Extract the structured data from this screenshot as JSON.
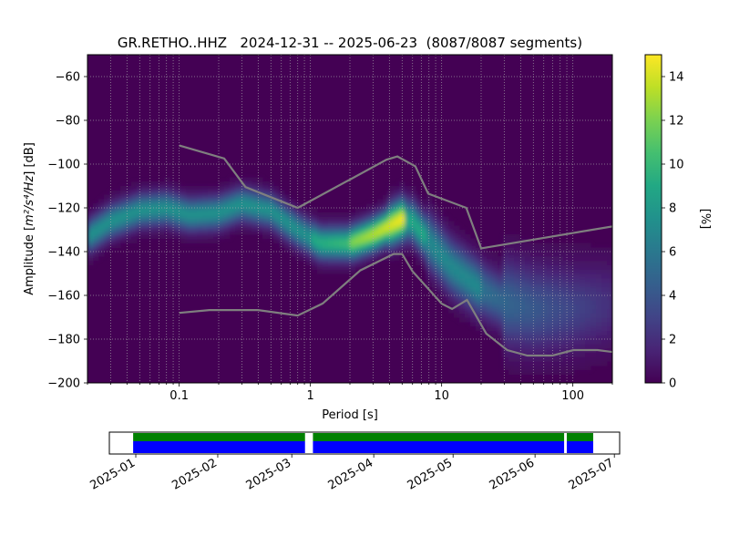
{
  "chart_data": {
    "type": "heatmap",
    "title": "GR.RETHO..HHZ   2024-12-31 -- 2025-06-23  (8087/8087 segments)",
    "xlabel": "Period [s]",
    "ylabel_main": "Amplitude [",
    "ylabel_math": "m²/s⁴/Hz",
    "ylabel_tail": "] [dB]",
    "x_scale": "log",
    "xlim": [
      0.02,
      200
    ],
    "ylim": [
      -200,
      -50
    ],
    "grid": true,
    "x_ticks": [
      {
        "value": 0.1,
        "label": "0.1"
      },
      {
        "value": 1,
        "label": "1"
      },
      {
        "value": 10,
        "label": "10"
      },
      {
        "value": 100,
        "label": "100"
      }
    ],
    "y_ticks": [
      {
        "value": -60,
        "label": "−60"
      },
      {
        "value": -80,
        "label": "−80"
      },
      {
        "value": -100,
        "label": "−100"
      },
      {
        "value": -120,
        "label": "−120"
      },
      {
        "value": -140,
        "label": "−140"
      },
      {
        "value": -160,
        "label": "−160"
      },
      {
        "value": -180,
        "label": "−180"
      },
      {
        "value": -200,
        "label": "−200"
      }
    ],
    "colorbar": {
      "label": "[%]",
      "range": [
        0,
        15
      ],
      "colormap": "viridis",
      "ticks": [
        {
          "value": 0,
          "label": "0"
        },
        {
          "value": 2,
          "label": "2"
        },
        {
          "value": 4,
          "label": "4"
        },
        {
          "value": 6,
          "label": "6"
        },
        {
          "value": 8,
          "label": "8"
        },
        {
          "value": 10,
          "label": "10"
        },
        {
          "value": 12,
          "label": "12"
        },
        {
          "value": 14,
          "label": "14"
        }
      ]
    },
    "ridge": [
      [
        0.02,
        -133
      ],
      [
        0.03,
        -126
      ],
      [
        0.05,
        -121
      ],
      [
        0.08,
        -120
      ],
      [
        0.12,
        -123
      ],
      [
        0.2,
        -122
      ],
      [
        0.3,
        -118
      ],
      [
        0.5,
        -121
      ],
      [
        0.8,
        -130
      ],
      [
        1.2,
        -136
      ],
      [
        2,
        -136
      ],
      [
        3,
        -132
      ],
      [
        4,
        -128
      ],
      [
        5,
        -125
      ],
      [
        6,
        -126
      ],
      [
        8,
        -135
      ],
      [
        12,
        -147
      ],
      [
        20,
        -157
      ],
      [
        30,
        -163
      ],
      [
        50,
        -166
      ],
      [
        100,
        -166
      ],
      [
        200,
        -164
      ]
    ],
    "noise_models": [
      {
        "points": [
          [
            0.1,
            -91.5
          ],
          [
            0.22,
            -97.4
          ],
          [
            0.32,
            -110.5
          ],
          [
            0.8,
            -120
          ],
          [
            3.8,
            -98
          ],
          [
            4.6,
            -96.5
          ],
          [
            6.3,
            -101
          ],
          [
            7.9,
            -113.5
          ],
          [
            15.4,
            -120
          ],
          [
            20,
            -138.5
          ],
          [
            354.8,
            -126
          ]
        ]
      },
      {
        "points": [
          [
            0.1,
            -168
          ],
          [
            0.17,
            -166.7
          ],
          [
            0.4,
            -166.7
          ],
          [
            0.8,
            -169.2
          ],
          [
            1.24,
            -163.7
          ],
          [
            2.4,
            -148.6
          ],
          [
            4.3,
            -141.1
          ],
          [
            5,
            -141.1
          ],
          [
            6,
            -149
          ],
          [
            10,
            -163.8
          ],
          [
            12,
            -166.2
          ],
          [
            15.6,
            -162.1
          ],
          [
            21.9,
            -177.5
          ],
          [
            31.6,
            -185
          ],
          [
            45,
            -187.5
          ],
          [
            70,
            -187.5
          ],
          [
            101,
            -185
          ],
          [
            154,
            -185
          ],
          [
            328,
            -187.5
          ]
        ]
      }
    ],
    "timeline": {
      "x_ticks": [
        {
          "value": "2025-01-01",
          "label": "2025-01"
        },
        {
          "value": "2025-02-01",
          "label": "2025-02"
        },
        {
          "value": "2025-03-01",
          "label": "2025-03"
        },
        {
          "value": "2025-04-01",
          "label": "2025-04"
        },
        {
          "value": "2025-05-01",
          "label": "2025-05"
        },
        {
          "value": "2025-06-01",
          "label": "2025-06"
        },
        {
          "value": "2025-07-01",
          "label": "2025-07"
        }
      ],
      "xlim": [
        "2024-12-22",
        "2025-07-03"
      ],
      "data_available": [
        [
          "2024-12-31",
          "2025-03-06"
        ],
        [
          "2025-03-09",
          "2025-06-12"
        ],
        [
          "2025-06-13",
          "2025-06-23"
        ]
      ],
      "colors": {
        "processed": "#008000",
        "data": "#0000ff"
      }
    }
  }
}
